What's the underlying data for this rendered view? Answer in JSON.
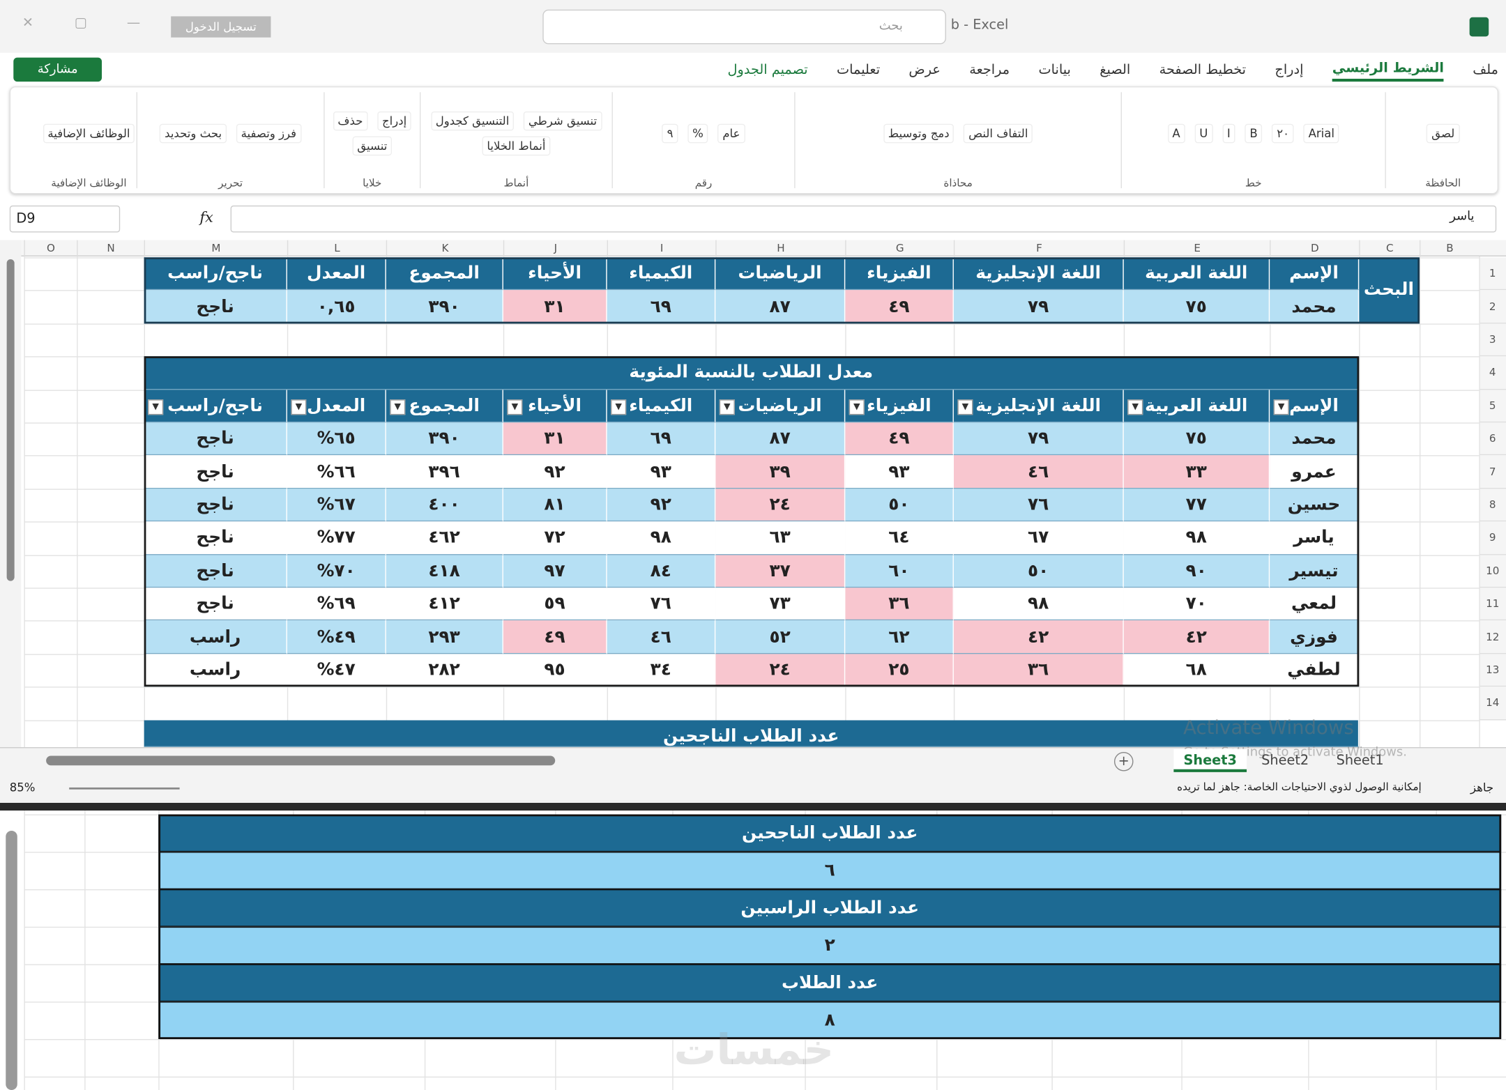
{
  "window": {
    "title": "b - Excel",
    "search": "بحث",
    "sign_in": "تسجيل الدخول",
    "share": "مشاركة"
  },
  "tabs": [
    "ملف",
    "الشريط الرئيسي",
    "إدراج",
    "تخطيط الصفحة",
    "الصيغ",
    "بيانات",
    "مراجعة",
    "عرض",
    "تعليمات",
    "تصميم الجدول"
  ],
  "active_tab": 1,
  "ribbon_groups": [
    {
      "name": "الحافظة",
      "items": [
        "لصق"
      ]
    },
    {
      "name": "خط",
      "items": [
        "Arial",
        "٢٠",
        "B",
        "I",
        "U",
        "A"
      ]
    },
    {
      "name": "محاذاة",
      "items": [
        "التفاف النص",
        "دمج وتوسيط"
      ]
    },
    {
      "name": "رقم",
      "items": [
        "عام",
        "%",
        "٩"
      ]
    },
    {
      "name": "أنماط",
      "items": [
        "تنسيق شرطي",
        "التنسيق كجدول",
        "أنماط الخلايا"
      ]
    },
    {
      "name": "خلايا",
      "items": [
        "إدراج",
        "حذف",
        "تنسيق"
      ]
    },
    {
      "name": "تحرير",
      "items": [
        "فرز وتصفية",
        "بحث وتحديد"
      ]
    },
    {
      "name": "الوظائف الإضافية",
      "items": [
        "الوظائف الإضافية"
      ]
    }
  ],
  "formula_bar": {
    "name_box": "D9",
    "fx": "fx",
    "content": "ياسر"
  },
  "columns": [
    "O",
    "N",
    "M",
    "L",
    "K",
    "J",
    "I",
    "H",
    "G",
    "F",
    "E",
    "D",
    "C",
    "B"
  ],
  "row_numbers": [
    1,
    2,
    3,
    4,
    5,
    6,
    7,
    8,
    9,
    10,
    11,
    12,
    13,
    14
  ],
  "colors": {
    "header": "#1d6a93",
    "band": "#b6e0f4",
    "plain": "#ffffff",
    "low": "#f8c6cf",
    "summary_band": "#92d3f3"
  },
  "search_table": {
    "label": "البحث",
    "headers": [
      "الإسم",
      "اللغة العربية",
      "اللغة الإنجليزية",
      "الفيزياء",
      "الرياضيات",
      "الكيمياء",
      "الأحياء",
      "المجموع",
      "المعدل",
      "ناجح/راسب"
    ],
    "row": {
      "cells": [
        "محمد",
        "٧٥",
        "٧٩",
        "٤٩",
        "٨٧",
        "٦٩",
        "٣١",
        "٣٩٠",
        "٠,٦٥",
        "ناجح"
      ],
      "low": [
        false,
        false,
        false,
        true,
        false,
        false,
        true,
        false,
        false,
        false
      ]
    }
  },
  "main_table": {
    "title": "معدل الطلاب بالنسبة المئوية",
    "headers": [
      "الإسم",
      "اللغة العربية",
      "اللغة الإنجليزية",
      "الفيزياء",
      "الرياضيات",
      "الكيمياء",
      "الأحياء",
      "المجموع",
      "المعدل",
      "ناجح/راسب"
    ],
    "rows": [
      {
        "cells": [
          "محمد",
          "٧٥",
          "٧٩",
          "٤٩",
          "٨٧",
          "٦٩",
          "٣١",
          "٣٩٠",
          "٦٥%",
          "ناجح"
        ],
        "low": [
          false,
          false,
          false,
          true,
          false,
          false,
          true,
          false,
          false,
          false
        ]
      },
      {
        "cells": [
          "عمرو",
          "٣٣",
          "٤٦",
          "٩٣",
          "٣٩",
          "٩٣",
          "٩٢",
          "٣٩٦",
          "٦٦%",
          "ناجح"
        ],
        "low": [
          false,
          true,
          true,
          false,
          true,
          false,
          false,
          false,
          false,
          false
        ]
      },
      {
        "cells": [
          "حسين",
          "٧٧",
          "٧٦",
          "٥٠",
          "٢٤",
          "٩٢",
          "٨١",
          "٤٠٠",
          "٦٧%",
          "ناجح"
        ],
        "low": [
          false,
          false,
          false,
          false,
          true,
          false,
          false,
          false,
          false,
          false
        ]
      },
      {
        "cells": [
          "ياسر",
          "٩٨",
          "٦٧",
          "٦٤",
          "٦٣",
          "٩٨",
          "٧٢",
          "٤٦٢",
          "٧٧%",
          "ناجح"
        ],
        "low": [
          false,
          false,
          false,
          false,
          false,
          false,
          false,
          false,
          false,
          false
        ]
      },
      {
        "cells": [
          "تيسير",
          "٩٠",
          "٥٠",
          "٦٠",
          "٣٧",
          "٨٤",
          "٩٧",
          "٤١٨",
          "٧٠%",
          "ناجح"
        ],
        "low": [
          false,
          false,
          false,
          false,
          true,
          false,
          false,
          false,
          false,
          false
        ]
      },
      {
        "cells": [
          "لمعي",
          "٧٠",
          "٩٨",
          "٣٦",
          "٧٣",
          "٧٦",
          "٥٩",
          "٤١٢",
          "٦٩%",
          "ناجح"
        ],
        "low": [
          false,
          false,
          false,
          true,
          false,
          false,
          false,
          false,
          false,
          false
        ]
      },
      {
        "cells": [
          "فوزي",
          "٤٢",
          "٤٢",
          "٦٢",
          "٥٢",
          "٤٦",
          "٤٩",
          "٢٩٣",
          "٤٩%",
          "راسب"
        ],
        "low": [
          false,
          true,
          true,
          false,
          false,
          false,
          true,
          false,
          false,
          false
        ]
      },
      {
        "cells": [
          "لطفي",
          "٦٨",
          "٣٦",
          "٢٥",
          "٢٤",
          "٣٤",
          "٩٥",
          "٢٨٢",
          "٤٧%",
          "راسب"
        ],
        "low": [
          false,
          false,
          true,
          true,
          true,
          false,
          false,
          false,
          false,
          false
        ]
      }
    ]
  },
  "summary": [
    {
      "label": "عدد الطلاب الناجحين",
      "value": "٦"
    },
    {
      "label": "عدد الطلاب الراسبين",
      "value": "٢"
    },
    {
      "label": "عدد الطلاب",
      "value": "٨"
    }
  ],
  "sheets": [
    "Sheet3",
    "Sheet2",
    "Sheet1"
  ],
  "active_sheet": 0,
  "status": {
    "ready": "جاهز",
    "accessibility": "إمكانية الوصول لذوي الاحتياجات الخاصة: جاهز لما تريده",
    "zoom": "85%"
  },
  "watermark": {
    "activate": "Activate Windows",
    "activate_hint": "Go to Settings to activate Windows.",
    "site": "خمسات"
  }
}
